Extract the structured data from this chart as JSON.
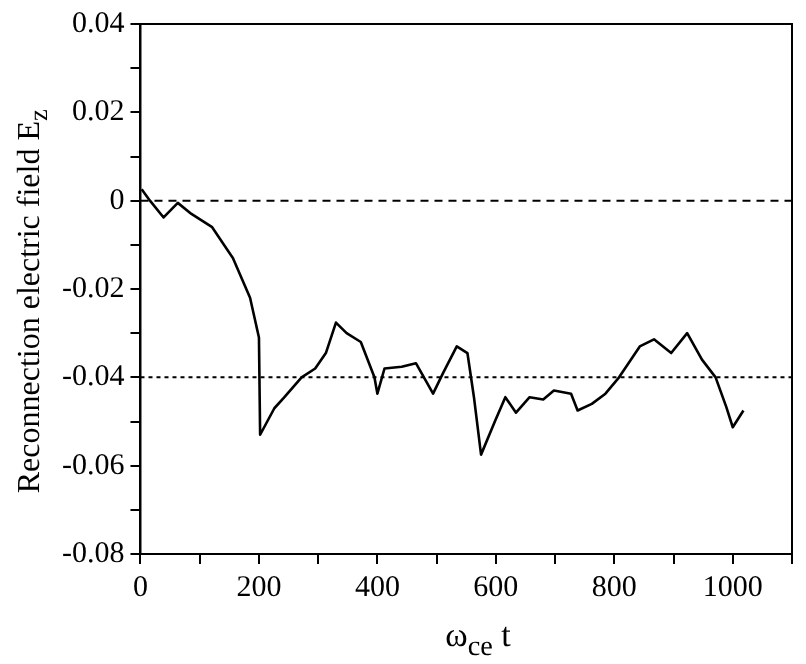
{
  "chart_data": {
    "type": "line",
    "xlabel": "ω$_{ce}$ t",
    "ylabel": "Reconnection electric field E$_{z}$",
    "series": [
      {
        "color": "#000000",
        "x": [
          2,
          16,
          39,
          63,
          86,
          121,
          156,
          185,
          200,
          202,
          226,
          243,
          272,
          295,
          313,
          330,
          348,
          372,
          395,
          400,
          412,
          441,
          465,
          494,
          511,
          534,
          552,
          563,
          575,
          599,
          616,
          634,
          657,
          680,
          698,
          727,
          738,
          762,
          785,
          808,
          843,
          867,
          896,
          923,
          948,
          971,
          989,
          1000,
          1018
        ],
        "values": [
          0.0026,
          0,
          -0.0038,
          -0.0005,
          -0.003,
          -0.006,
          -0.013,
          -0.022,
          -0.031,
          -0.053,
          -0.047,
          -0.0445,
          -0.04,
          -0.038,
          -0.0345,
          -0.0276,
          -0.03,
          -0.032,
          -0.04,
          -0.0437,
          -0.038,
          -0.0376,
          -0.0368,
          -0.0437,
          -0.039,
          -0.033,
          -0.0345,
          -0.0445,
          -0.0575,
          -0.0498,
          -0.0445,
          -0.048,
          -0.0445,
          -0.045,
          -0.043,
          -0.0437,
          -0.0475,
          -0.046,
          -0.0437,
          -0.04,
          -0.033,
          -0.0314,
          -0.0345,
          -0.03,
          -0.036,
          -0.04,
          -0.0467,
          -0.0513,
          -0.0475
        ]
      }
    ],
    "xlim": [
      0,
      1100
    ],
    "xticks": [
      0,
      {
        "value": 100,
        "label": null
      },
      200,
      {
        "value": 300,
        "label": null
      },
      400,
      {
        "value": 500,
        "label": null
      },
      600,
      {
        "value": 700,
        "label": null
      },
      800,
      {
        "value": 900,
        "label": null
      },
      1000,
      {
        "value": 1100,
        "label": null
      }
    ],
    "ylim": [
      -0.08,
      0.04
    ],
    "yticks": [
      -0.08,
      {
        "value": -0.07,
        "label": null
      },
      -0.06,
      {
        "value": -0.05,
        "label": null
      },
      -0.04,
      {
        "value": -0.03,
        "label": null
      },
      -0.02,
      {
        "value": -0.01,
        "label": null
      },
      0,
      {
        "value": 0.01,
        "label": null
      },
      0.02,
      {
        "value": 0.03,
        "label": null
      },
      0.04
    ],
    "ref_lines": [
      {
        "axis": "y",
        "value": 0,
        "line_style": "dashed",
        "color": "#000000"
      },
      {
        "axis": "y",
        "value": -0.04,
        "line_style": "dotted",
        "color": "#000000"
      }
    ],
    "grid": false,
    "legend": false,
    "marker": "none",
    "line_style": "solid"
  }
}
